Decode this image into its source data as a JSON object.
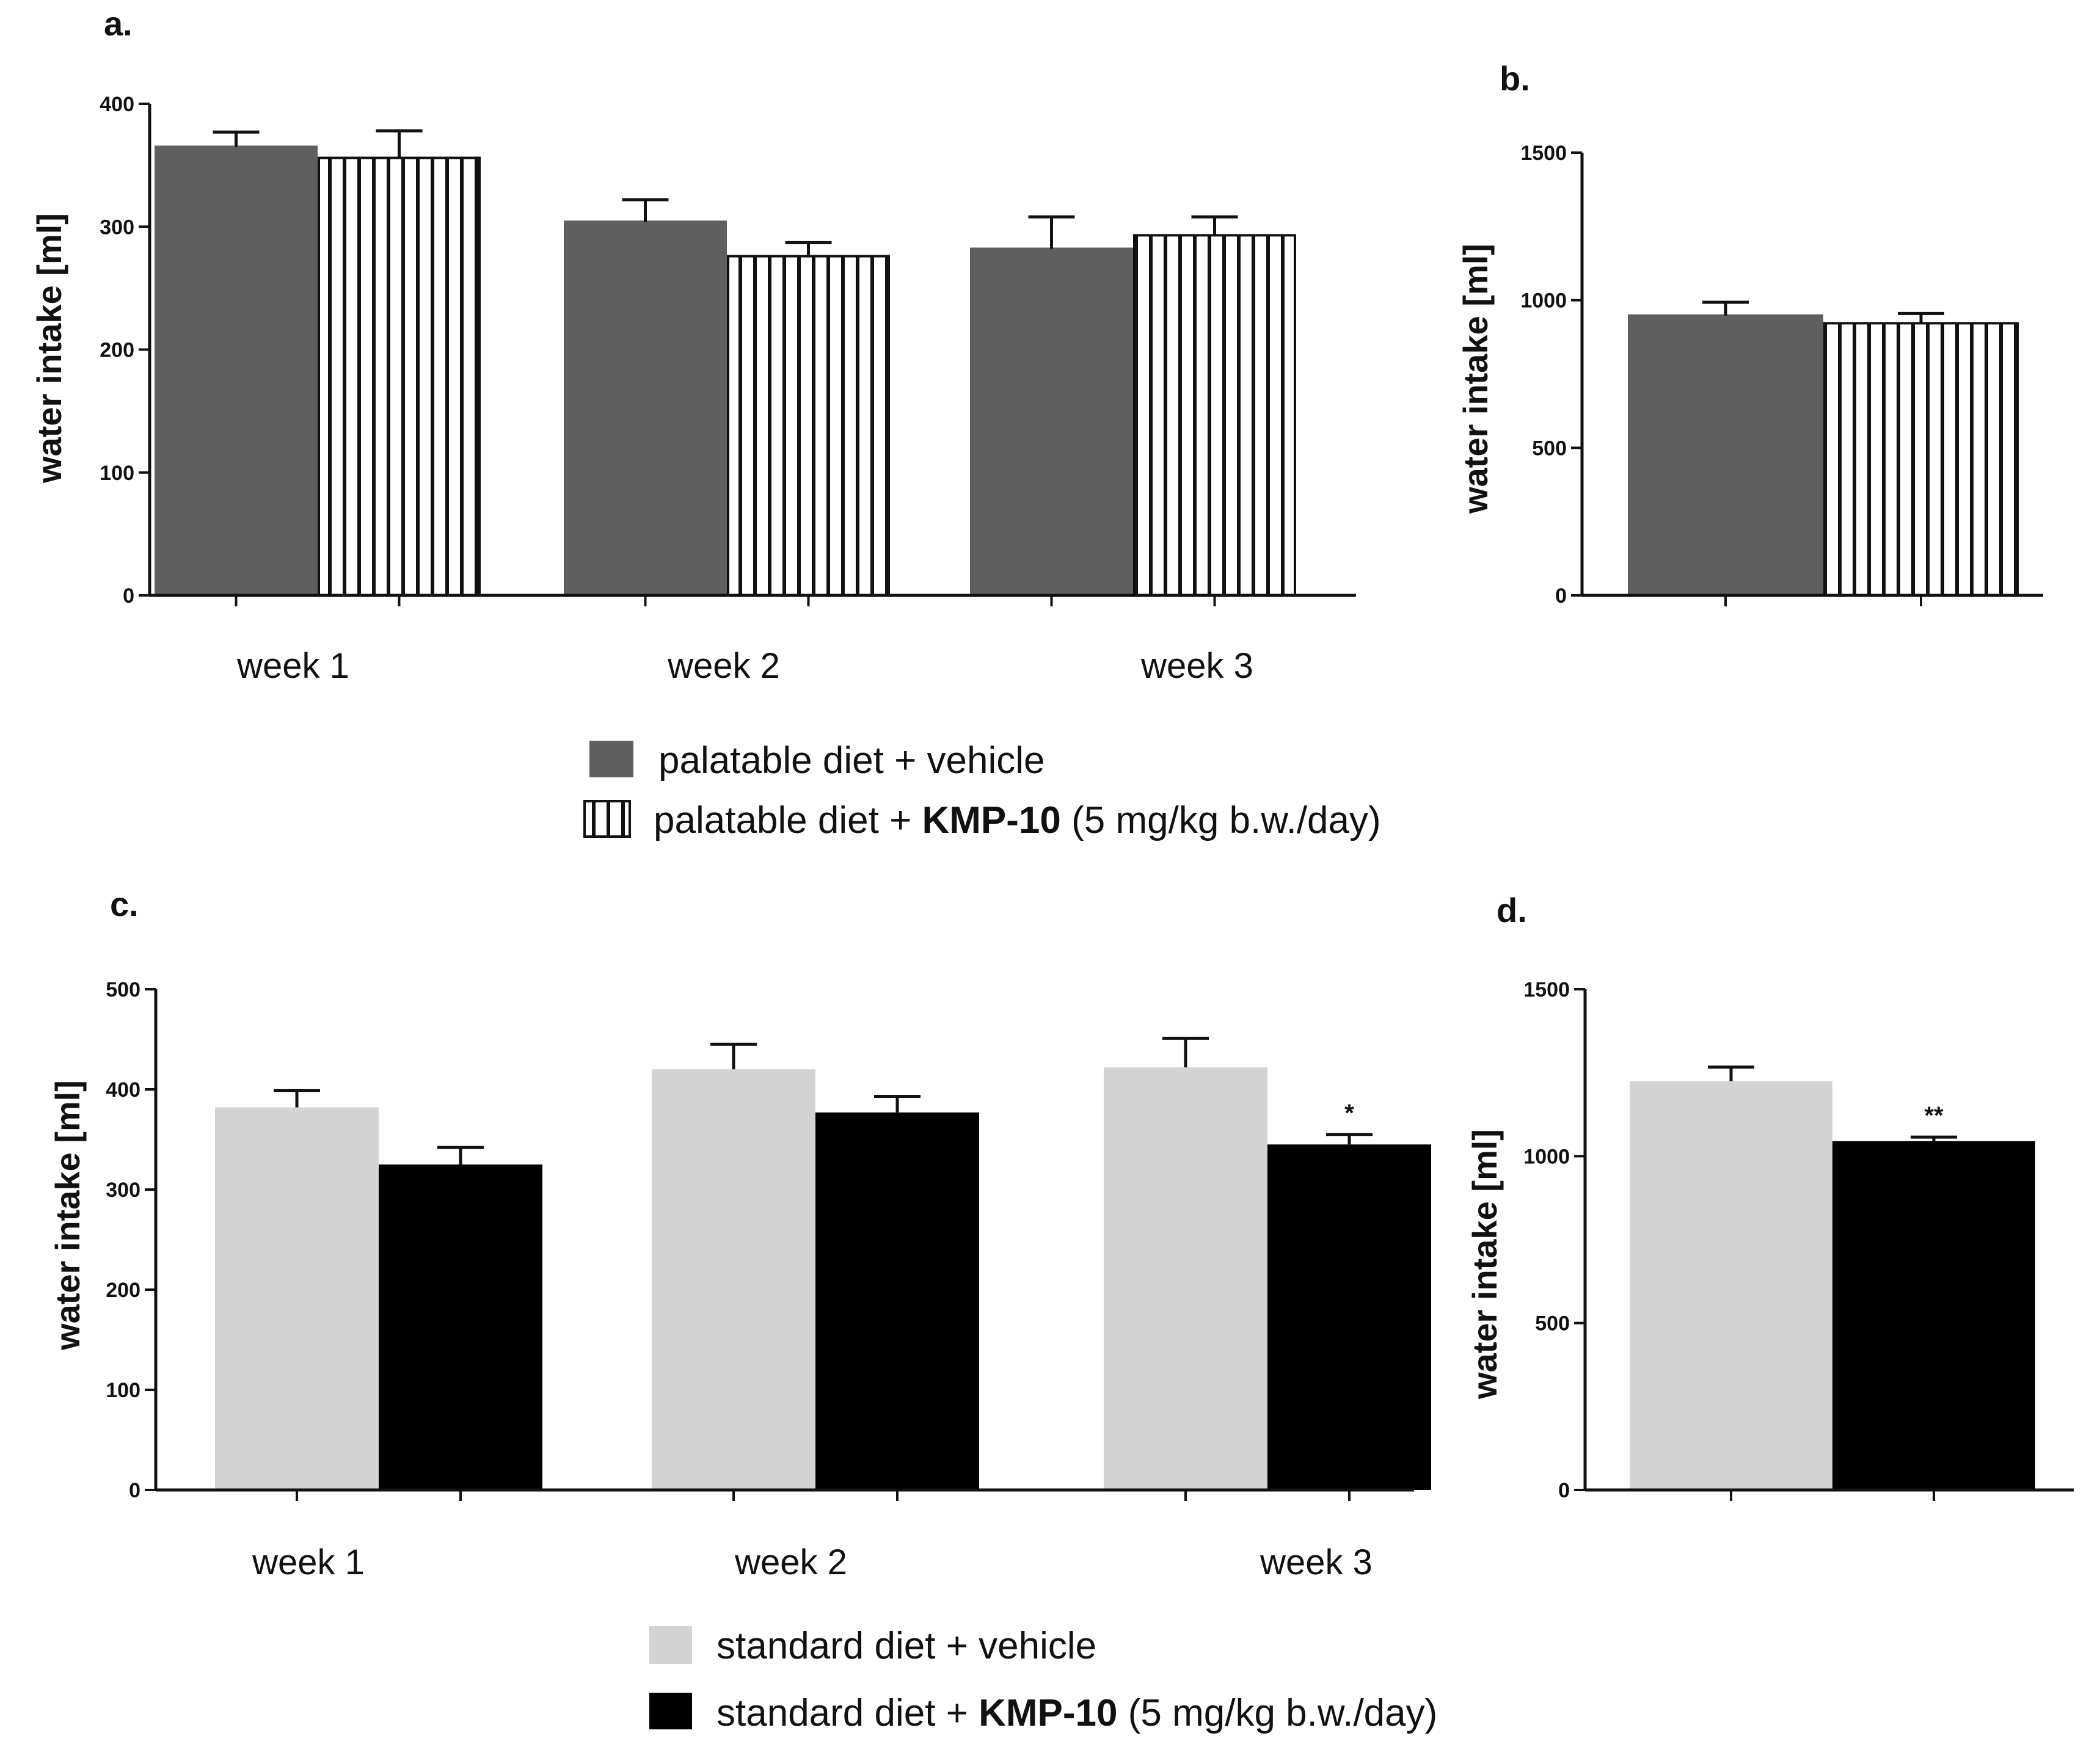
{
  "colors": {
    "palatable_vehicle": "#5f5f5f",
    "palatable_kmp": "#ffffff",
    "standard_vehicle": "#d3d3d3",
    "standard_kmp": "#000000",
    "axis": "#111111"
  },
  "legend_top": {
    "items": [
      {
        "name": "palatable-vehicle",
        "text": "palatable diet + vehicle",
        "pattern": "solid-dark-gray"
      },
      {
        "name": "palatable-kmp",
        "prefix": "palatable diet + ",
        "bold": "KMP-10",
        "suffix": " (5 mg/kg b.w./day)",
        "pattern": "vertical-stripes"
      }
    ]
  },
  "legend_bottom": {
    "items": [
      {
        "name": "standard-vehicle",
        "text": "standard diet + vehicle",
        "pattern": "solid-light-gray"
      },
      {
        "name": "standard-kmp",
        "prefix": "standard diet + ",
        "bold": "KMP-10",
        "suffix": " (5 mg/kg b.w./day)",
        "pattern": "solid-black"
      }
    ]
  },
  "chart_data": [
    {
      "panel": "a.",
      "type": "bar",
      "ylabel": "water intake [ml]",
      "ylim": [
        0,
        400
      ],
      "yticks": [
        0,
        100,
        200,
        300,
        400
      ],
      "categories": [
        "week 1",
        "week 2",
        "week 3"
      ],
      "series": [
        {
          "name": "palatable diet + vehicle",
          "values": [
            365,
            304,
            282
          ],
          "errors": [
            12,
            18,
            26
          ]
        },
        {
          "name": "palatable diet + KMP-10 (5 mg/kg b.w./day)",
          "values": [
            356,
            276,
            293
          ],
          "errors": [
            22,
            11,
            15
          ]
        }
      ],
      "annotations": []
    },
    {
      "panel": "b.",
      "type": "bar",
      "ylabel": "water intake [ml]",
      "ylim": [
        0,
        1500
      ],
      "yticks": [
        0,
        500,
        1000,
        1500
      ],
      "categories": [
        ""
      ],
      "series": [
        {
          "name": "palatable diet + vehicle",
          "values": [
            948
          ],
          "errors": [
            45
          ]
        },
        {
          "name": "palatable diet + KMP-10 (5 mg/kg b.w./day)",
          "values": [
            922
          ],
          "errors": [
            33
          ]
        }
      ],
      "annotations": []
    },
    {
      "panel": "c.",
      "type": "bar",
      "ylabel": "water intake [ml]",
      "ylim": [
        0,
        500
      ],
      "yticks": [
        0,
        100,
        200,
        300,
        400,
        500
      ],
      "categories": [
        "week 1",
        "week 2",
        "week 3"
      ],
      "series": [
        {
          "name": "standard diet + vehicle",
          "values": [
            382,
            420,
            422
          ],
          "errors": [
            17,
            25,
            29
          ]
        },
        {
          "name": "standard diet + KMP-10 (5 mg/kg b.w./day)",
          "values": [
            325,
            377,
            345
          ],
          "errors": [
            17,
            16,
            10
          ]
        }
      ],
      "annotations": [
        {
          "category": 2,
          "series": 1,
          "text": "*"
        }
      ]
    },
    {
      "panel": "d.",
      "type": "bar",
      "ylabel": "water intake [ml]",
      "ylim": [
        0,
        1500
      ],
      "yticks": [
        0,
        500,
        1000,
        1500
      ],
      "categories": [
        ""
      ],
      "series": [
        {
          "name": "standard diet + vehicle",
          "values": [
            1225
          ],
          "errors": [
            42
          ]
        },
        {
          "name": "standard diet + KMP-10 (5 mg/kg b.w./day)",
          "values": [
            1045
          ],
          "errors": [
            12
          ]
        }
      ],
      "annotations": [
        {
          "category": 0,
          "series": 1,
          "text": "**"
        }
      ]
    }
  ]
}
